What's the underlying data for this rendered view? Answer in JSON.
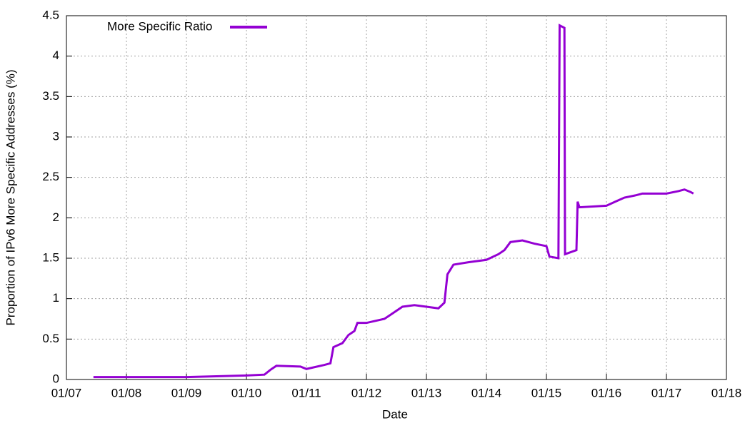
{
  "chart_data": {
    "type": "line",
    "x_label": "Date",
    "y_label": "Proportion of IPv6 More Specific Addresses (%)",
    "xlim": [
      2007,
      2018
    ],
    "ylim": [
      0,
      4.5
    ],
    "xticks": [
      {
        "value": 2007,
        "label": "01/07"
      },
      {
        "value": 2008,
        "label": "01/08"
      },
      {
        "value": 2009,
        "label": "01/09"
      },
      {
        "value": 2010,
        "label": "01/10"
      },
      {
        "value": 2011,
        "label": "01/11"
      },
      {
        "value": 2012,
        "label": "01/12"
      },
      {
        "value": 2013,
        "label": "01/13"
      },
      {
        "value": 2014,
        "label": "01/14"
      },
      {
        "value": 2015,
        "label": "01/15"
      },
      {
        "value": 2016,
        "label": "01/16"
      },
      {
        "value": 2017,
        "label": "01/17"
      },
      {
        "value": 2018,
        "label": "01/18"
      }
    ],
    "yticks": [
      0,
      0.5,
      1,
      {
        "value": 1.5,
        "label": "1.5"
      },
      2,
      2.5,
      3,
      3.5,
      4,
      4.5
    ],
    "grid": true,
    "legend": "top-left",
    "x": [
      2007.45,
      2008,
      2009,
      2009.5,
      2010,
      2010.3,
      2010.4,
      2010.5,
      2010.9,
      2011,
      2011.3,
      2011.4,
      2011.45,
      2011.6,
      2011.7,
      2011.8,
      2011.85,
      2012,
      2012.3,
      2012.4,
      2012.6,
      2012.8,
      2013,
      2013.2,
      2013.3,
      2013.35,
      2013.45,
      2013.7,
      2014,
      2014.2,
      2014.3,
      2014.4,
      2014.6,
      2014.8,
      2015,
      2015.05,
      2015.2,
      2015.22,
      2015.3,
      2015.31,
      2015.5,
      2015.52,
      2015.55,
      2016,
      2016.15,
      2016.3,
      2016.5,
      2016.6,
      2017,
      2017.2,
      2017.3,
      2017.4,
      2017.45
    ],
    "series": [
      {
        "name": "More Specific Ratio",
        "color": "#9400d3",
        "values": [
          0.03,
          0.03,
          0.03,
          0.04,
          0.05,
          0.06,
          0.12,
          0.17,
          0.16,
          0.13,
          0.18,
          0.2,
          0.4,
          0.45,
          0.55,
          0.6,
          0.7,
          0.7,
          0.75,
          0.8,
          0.9,
          0.92,
          0.9,
          0.88,
          0.95,
          1.3,
          1.42,
          1.45,
          1.48,
          1.55,
          1.6,
          1.7,
          1.72,
          1.68,
          1.65,
          1.52,
          1.5,
          4.38,
          4.35,
          1.55,
          1.6,
          2.2,
          2.13,
          2.15,
          2.2,
          2.25,
          2.28,
          2.3,
          2.3,
          2.33,
          2.35,
          2.32,
          2.3
        ]
      }
    ]
  }
}
